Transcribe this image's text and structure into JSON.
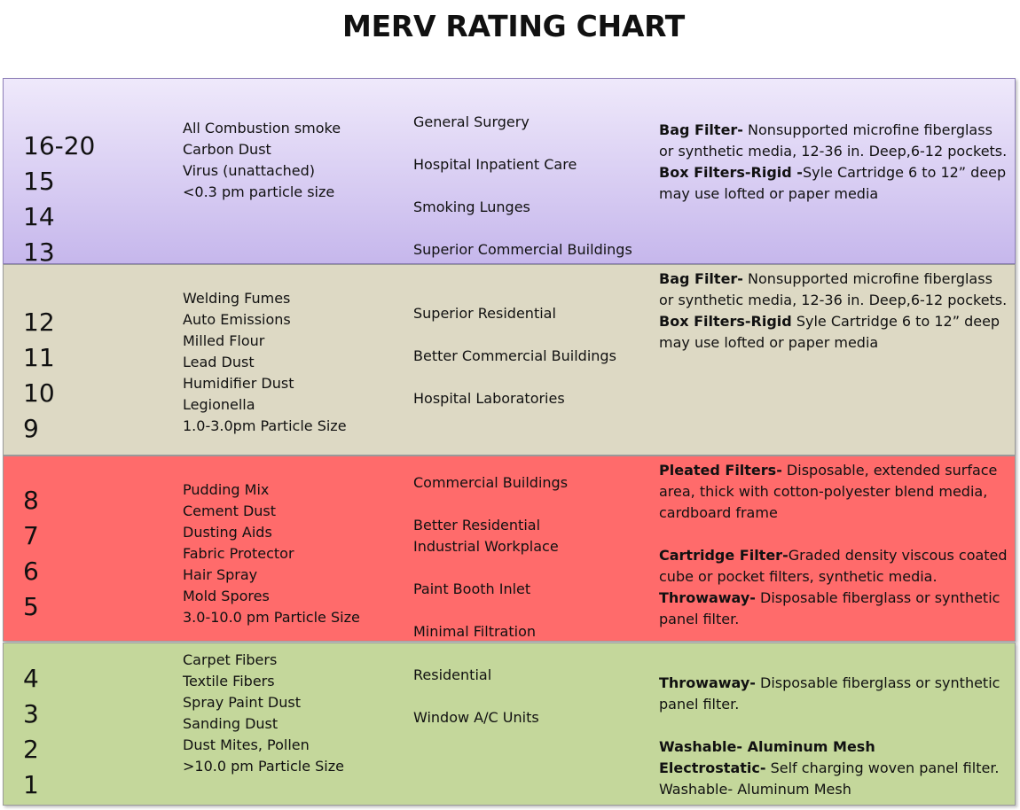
{
  "title": "MERV RATING CHART",
  "rows": [
    {
      "merv": [
        "16-20",
        "15",
        "14",
        "13"
      ],
      "contaminants": [
        "All Combustion smoke",
        "Carbon Dust",
        "Virus (unattached)",
        "<0.3 pm  particle size"
      ],
      "applications": [
        "General Surgery",
        "Hospital Inpatient Care",
        "Smoking Lunges",
        "Superior Commercial Buildings"
      ],
      "filters": [
        {
          "name": "Bag Filter-",
          "desc": " Nonsupported microfine fiberglass or synthetic media, 12-36 in. Deep,6-12 pockets."
        },
        {
          "name": "Box Filters-Rigid -",
          "desc": "Syle Cartridge 6 to 12” deep may use lofted or paper media"
        }
      ],
      "color": "#c6b7ec"
    },
    {
      "merv": [
        "12",
        "11",
        "10",
        "9"
      ],
      "contaminants": [
        "Welding Fumes",
        "Auto Emissions",
        "Milled Flour",
        "Lead Dust",
        "Humidifier Dust",
        "Legionella",
        "1.0-3.0pm Particle Size"
      ],
      "applications": [
        "Superior Residential",
        "Better Commercial Buildings",
        "Hospital Laboratories"
      ],
      "filters": [
        {
          "name": "Bag Filter-",
          "desc": " Nonsupported microfine fiberglass or synthetic media, 12-36 in. Deep,6-12 pockets."
        },
        {
          "name": "Box Filters-Rigid",
          "desc": " Syle Cartridge 6 to 12” deep may use lofted or paper media"
        }
      ],
      "color": "#ddd9c4"
    },
    {
      "merv": [
        "8",
        "7",
        "6",
        "5"
      ],
      "contaminants": [
        "Pudding Mix",
        "Cement Dust",
        "Dusting Aids",
        "Fabric Protector",
        "Hair Spray",
        "Mold Spores",
        "3.0-10.0 pm Particle Size"
      ],
      "applications": [
        "Commercial Buildings",
        "Better Residential",
        "Industrial Workplace",
        "Paint Booth Inlet",
        "Minimal Filtration"
      ],
      "filters": [
        {
          "name": "Pleated Filters-",
          "desc": " Disposable, extended surface area, thick with cotton-polyester blend media, cardboard frame"
        },
        {
          "name": "Cartridge Filter-",
          "desc": "Graded density viscous coated cube or pocket filters, synthetic media."
        },
        {
          "name": "Throwaway-",
          "desc": " Disposable fiberglass or synthetic panel filter."
        }
      ],
      "color": "#ff6b6b"
    },
    {
      "merv": [
        "4",
        "3",
        "2",
        "1"
      ],
      "contaminants": [
        "Carpet Fibers",
        "Textile Fibers",
        "Spray Paint Dust",
        "Sanding Dust",
        "Dust Mites, Pollen",
        ">10.0 pm Particle Size"
      ],
      "applications": [
        "Residential",
        "Window A/C Units"
      ],
      "filters": [
        {
          "name": "Throwaway-",
          "desc": " Disposable fiberglass or synthetic panel filter."
        },
        {
          "name": "Washable- Aluminum Mesh",
          "desc": ""
        },
        {
          "name": "Electrostatic-",
          "desc": " Self charging woven panel filter."
        },
        {
          "name": "",
          "desc": "Washable- Aluminum Mesh"
        }
      ],
      "color": "#c4d79b"
    }
  ]
}
